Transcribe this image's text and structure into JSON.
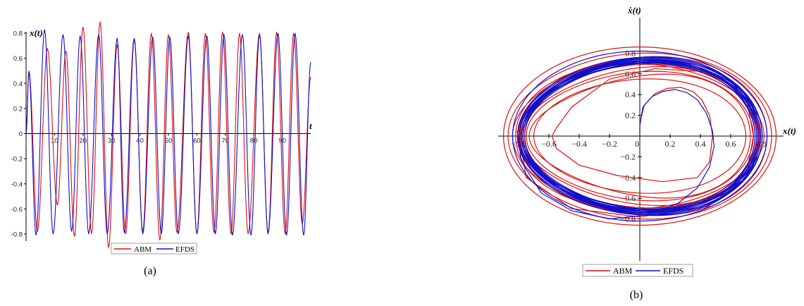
{
  "chart_data": [
    {
      "type": "line",
      "caption": "(a)",
      "xlabel": "t",
      "ylabel": "x(t)",
      "xlim": [
        0,
        100
      ],
      "ylim": [
        -0.92,
        0.92
      ],
      "x_ticks": [
        10,
        20,
        30,
        40,
        50,
        60,
        70,
        80,
        90
      ],
      "y_ticks": [
        -0.8,
        -0.6,
        -0.4,
        -0.2,
        0,
        0.2,
        0.4,
        0.6,
        0.8
      ],
      "x_tick_labels": [
        "10",
        "20",
        "30",
        "40",
        "50",
        "60",
        "70",
        "80",
        "90"
      ],
      "y_tick_labels": [
        "-0.8",
        "-0.6",
        "-0.4",
        "-0.2",
        "0",
        "0.2",
        "0.4",
        "0.6",
        "0.8"
      ],
      "grid": false,
      "legend": "bottom-center",
      "series": [
        {
          "name": "ABM",
          "color": "#e01010",
          "peaks": [
            [
              1,
              0.5
            ],
            [
              7.5,
              0.68
            ],
            [
              14,
              0.66
            ],
            [
              20,
              0.85
            ],
            [
              26,
              0.89
            ],
            [
              32,
              0.71
            ],
            [
              38,
              0.75
            ],
            [
              44,
              0.8
            ],
            [
              50,
              0.79
            ],
            [
              57,
              0.81
            ],
            [
              63,
              0.8
            ],
            [
              69,
              0.81
            ],
            [
              75,
              0.8
            ],
            [
              82,
              0.8
            ],
            [
              88,
              0.81
            ],
            [
              94,
              0.8
            ],
            [
              100,
              0.45
            ]
          ],
          "troughs": [
            [
              4,
              -0.78
            ],
            [
              11,
              -0.57
            ],
            [
              17,
              -0.82
            ],
            [
              23,
              -0.8
            ],
            [
              29,
              -0.91
            ],
            [
              35,
              -0.8
            ],
            [
              41,
              -0.78
            ],
            [
              47,
              -0.85
            ],
            [
              53,
              -0.79
            ],
            [
              60,
              -0.8
            ],
            [
              66,
              -0.79
            ],
            [
              72,
              -0.8
            ],
            [
              78,
              -0.8
            ],
            [
              85,
              -0.79
            ],
            [
              91,
              -0.8
            ],
            [
              97,
              -0.72
            ]
          ]
        },
        {
          "name": "EFDS",
          "color": "#1010cc",
          "peaks": [
            [
              1,
              0.49
            ],
            [
              6.5,
              0.83
            ],
            [
              13,
              0.79
            ],
            [
              19,
              0.78
            ],
            [
              25.5,
              0.79
            ],
            [
              32,
              0.76
            ],
            [
              38,
              0.76
            ],
            [
              44.5,
              0.77
            ],
            [
              50.5,
              0.77
            ],
            [
              57,
              0.78
            ],
            [
              63.5,
              0.78
            ],
            [
              69.5,
              0.79
            ],
            [
              76,
              0.79
            ],
            [
              82,
              0.79
            ],
            [
              88.5,
              0.8
            ],
            [
              94.5,
              0.8
            ],
            [
              100,
              0.57
            ]
          ],
          "troughs": [
            [
              3.5,
              -0.81
            ],
            [
              9.5,
              -0.8
            ],
            [
              16,
              -0.78
            ],
            [
              22,
              -0.8
            ],
            [
              28.5,
              -0.8
            ],
            [
              34.5,
              -0.79
            ],
            [
              41,
              -0.8
            ],
            [
              47.5,
              -0.8
            ],
            [
              53.5,
              -0.8
            ],
            [
              60,
              -0.8
            ],
            [
              66.5,
              -0.8
            ],
            [
              72.5,
              -0.81
            ],
            [
              79,
              -0.81
            ],
            [
              85,
              -0.8
            ],
            [
              91.5,
              -0.81
            ],
            [
              97.5,
              -0.81
            ]
          ]
        }
      ]
    },
    {
      "type": "line",
      "caption": "(b)",
      "xlabel": "x(t)",
      "ylabel": "ẋ(t)",
      "xlim": [
        -0.9,
        0.9
      ],
      "ylim": [
        -0.95,
        0.9
      ],
      "x_ticks": [
        -0.8,
        -0.6,
        -0.4,
        -0.2,
        0.2,
        0.4,
        0.6,
        0.8
      ],
      "y_ticks": [
        -0.8,
        -0.6,
        -0.4,
        -0.2,
        0.2,
        0.4,
        0.6,
        0.8
      ],
      "x_tick_labels": [
        "−0.8",
        "−0.6",
        "−0.4",
        "−0.2",
        "0.2",
        "0.4",
        "0.6",
        "0.8"
      ],
      "y_tick_labels": [
        "−0.8",
        "−0.6",
        "−0.4",
        "−0.2",
        "0.2",
        "0.4",
        "0.6",
        "0.8"
      ],
      "origin_label": "0",
      "grid": false,
      "legend": "bottom-center",
      "series": [
        {
          "name": "ABM",
          "color": "#e01010"
        },
        {
          "name": "EFDS",
          "color": "#1010cc"
        }
      ]
    }
  ]
}
